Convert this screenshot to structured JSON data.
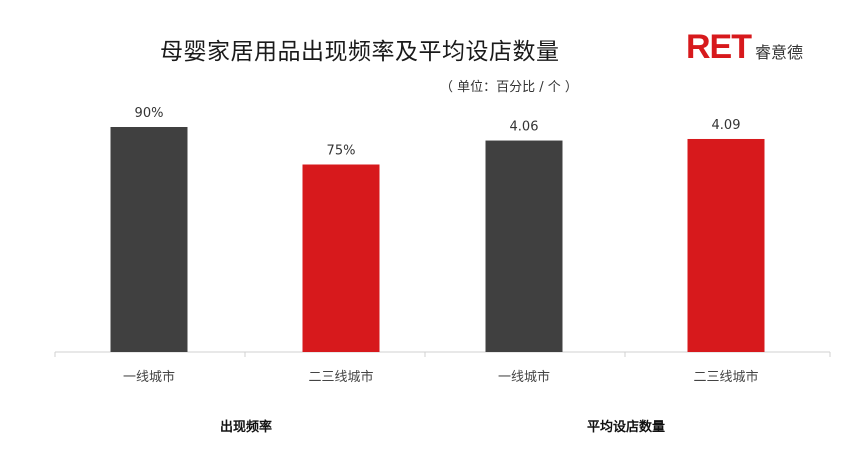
{
  "title": "母婴家居用品出现频率及平均设店数量",
  "unit_note": "（ 单位：百分比 / 个 ）",
  "logo": {
    "mark": "RET",
    "name": "睿意德",
    "brand_color": "#d7191c"
  },
  "colors": {
    "dark": "#404040",
    "red": "#d7191c",
    "axis": "#d0d0d0"
  },
  "chart_data": {
    "type": "bar",
    "groups": [
      {
        "name": "出现频率",
        "categories": [
          "一线城市",
          "二三线城市"
        ],
        "values": [
          90,
          75
        ],
        "labels": [
          "90%",
          "75%"
        ],
        "colors": [
          "#404040",
          "#d7191c"
        ],
        "ylim": [
          0,
          100
        ]
      },
      {
        "name": "平均设店数量",
        "categories": [
          "一线城市",
          "二三线城市"
        ],
        "values": [
          4.06,
          4.09
        ],
        "labels": [
          "4.06",
          "4.09"
        ],
        "colors": [
          "#404040",
          "#d7191c"
        ],
        "ylim": [
          0,
          4.8
        ]
      }
    ],
    "grid": false,
    "legend": "none"
  }
}
